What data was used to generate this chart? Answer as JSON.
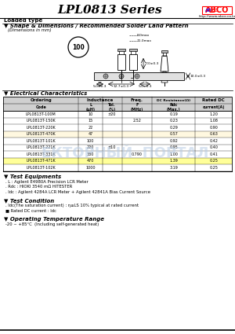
{
  "title": "LPL0813 Series",
  "logo_text": "ABCO",
  "logo_url": "http://www.abco.co.kr",
  "loaded_type": "Loaded type",
  "section1_title": "▼ Shape & Dimensions / Recommended Solder Land Pattern",
  "dim_note": "(Dimensions in mm)",
  "section2_title": "▼ Electrical Characteristics",
  "table_header1": [
    "Ordering",
    "Inductance",
    "Freq.",
    "DC Resistance(Ω)",
    "Rated DC"
  ],
  "table_header2": [
    "Code",
    "L\n(μH)",
    "Tol.\n(%)",
    "F\n(MHz)",
    "Rdc\n(Max.)",
    "current(A)"
  ],
  "table_rows": [
    [
      "LPL0813T-100M",
      "10",
      "±20",
      "",
      "0.19",
      "1.20"
    ],
    [
      "LPL0813T-150K",
      "15",
      "",
      "2.52",
      "0.23",
      "1.08"
    ],
    [
      "LPL0813T-220K",
      "22",
      "",
      "",
      "0.29",
      "0.90"
    ],
    [
      "LPL0813T-470K",
      "47",
      "",
      "",
      "0.57",
      "0.63"
    ],
    [
      "LPL0813T-101K",
      "100",
      "",
      "",
      "0.92",
      "0.42"
    ],
    [
      "LPL0813T-221K",
      "220",
      "±10",
      "",
      "0.95",
      "0.40"
    ],
    [
      "LPL0813T-331K",
      "330",
      "",
      "0.790",
      "1.00",
      "0.41"
    ],
    [
      "LPL0813T-471K",
      "470",
      "",
      "",
      "1.39",
      "0.25"
    ],
    [
      "LPL0813T-102K",
      "1000",
      "",
      "",
      "3.19",
      "0.25"
    ]
  ],
  "highlighted_row_idx": 8,
  "test_equip_title": "▼ Test Equipments",
  "test_equip_lines": [
    ". L : Agilent E4980A Precision LCR Meter",
    ". Rdc : HIOKI 3540 mΩ HITESTER",
    ". Idc : Agilent 4284A LCR Meter + Agilent 42841A Bias Current Source"
  ],
  "test_cond_title": "▼ Test Condition",
  "test_cond_lines": [
    ". Idc(The saturation current) : η≤LS 10% typical at rated current",
    "■ Rated DC current : Idc"
  ],
  "op_temp_title": "▼ Operating Temperature Range",
  "op_temp_lines": [
    "-20 ~ +85°C  (Including self-generated heat)"
  ],
  "bg_color": "#ffffff",
  "watermark_text": "ЕКТОРНЫЙ  ПОРТАЛ"
}
